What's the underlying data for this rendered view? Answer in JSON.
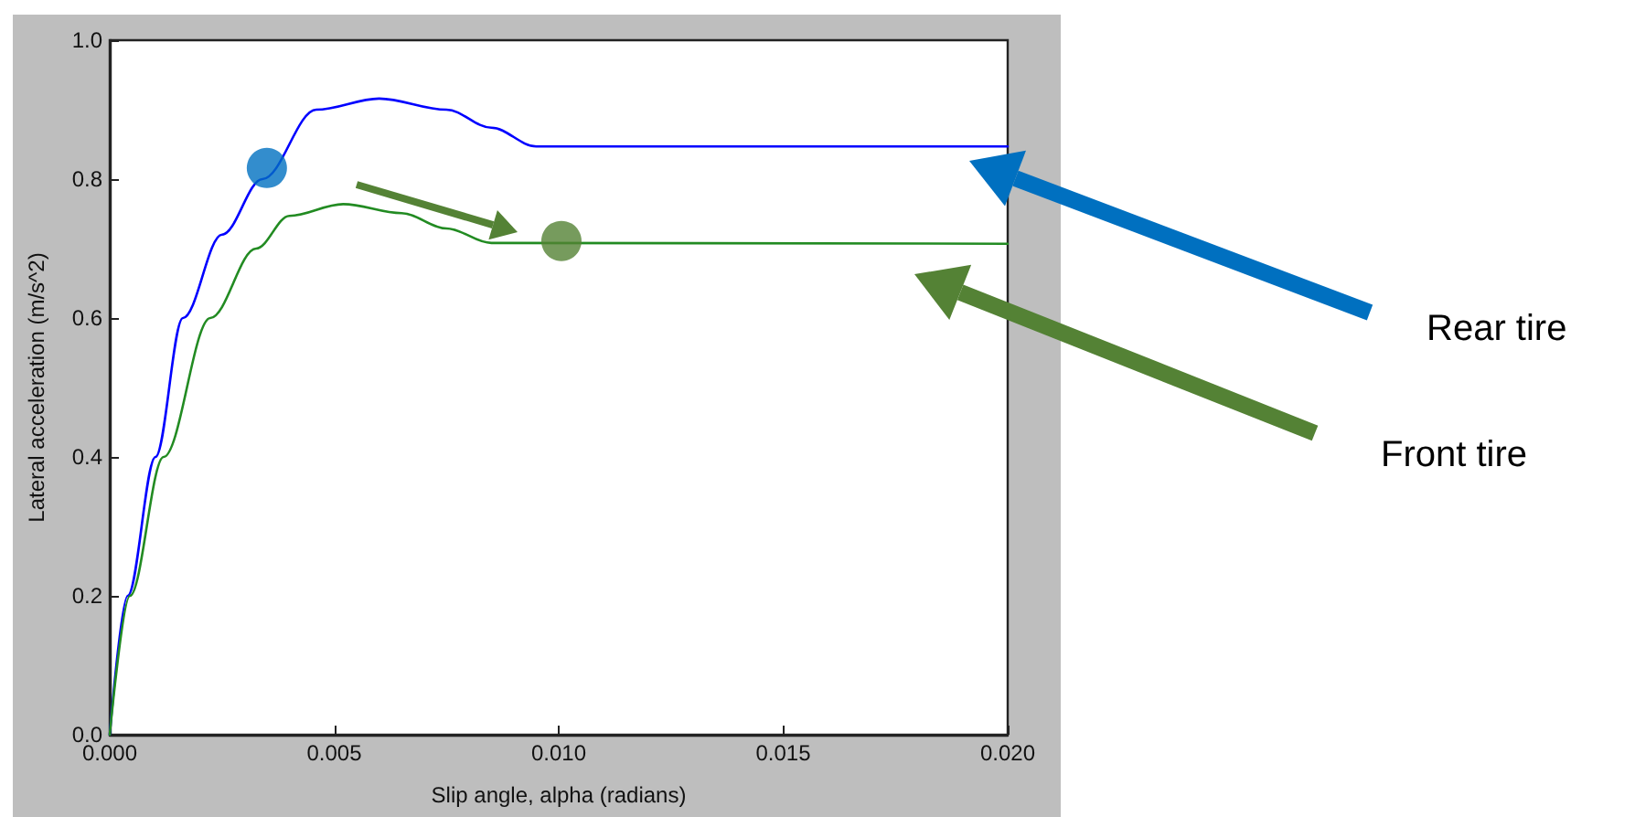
{
  "chart_data": {
    "type": "line",
    "xlabel": "Slip angle, alpha (radians)",
    "ylabel": "Lateral acceleration (m/s^2)",
    "xlim": [
      0,
      0.02
    ],
    "ylim": [
      0,
      1
    ],
    "xticks": [
      {
        "value": 0,
        "label": "0.000"
      },
      {
        "value": 0.005,
        "label": "0.005"
      },
      {
        "value": 0.01,
        "label": "0.010"
      },
      {
        "value": 0.015,
        "label": "0.015"
      },
      {
        "value": 0.02,
        "label": "0.020"
      }
    ],
    "yticks": [
      {
        "value": 0,
        "label": "0.0"
      },
      {
        "value": 0.2,
        "label": "0.2"
      },
      {
        "value": 0.4,
        "label": "0.4"
      },
      {
        "value": 0.6,
        "label": "0.6"
      },
      {
        "value": 0.8,
        "label": "0.8"
      },
      {
        "value": 1,
        "label": "1.0"
      }
    ],
    "grid": false,
    "line_style": "solid",
    "series": [
      {
        "name": "Rear tire",
        "color": "#0000ff",
        "marker": "none",
        "x": [
          0,
          0.0004,
          0.00102,
          0.00163,
          0.0025,
          0.0034,
          0.0046,
          0.006,
          0.0075,
          0.0085,
          0.0095,
          0.02
        ],
        "values": [
          0,
          0.2,
          0.4,
          0.6,
          0.72,
          0.8,
          0.9,
          0.916,
          0.9,
          0.874,
          0.847,
          0.847
        ]
      },
      {
        "name": "Front tire",
        "color": "#228b22",
        "marker": "none",
        "x": [
          0,
          0.00045,
          0.0012,
          0.00224,
          0.00326,
          0.004,
          0.0052,
          0.0065,
          0.0075,
          0.0085,
          0.02
        ],
        "values": [
          0,
          0.2,
          0.4,
          0.6,
          0.7,
          0.747,
          0.764,
          0.751,
          0.729,
          0.708,
          0.707
        ]
      },
      {
        "type": "scatter",
        "color": "#0070c0",
        "marker": "circle",
        "x": [
          0.0035
        ],
        "values": [
          0.816
        ]
      },
      {
        "type": "scatter",
        "color": "#548235",
        "marker": "circle",
        "x": [
          0.01006
        ],
        "values": [
          0.711
        ]
      }
    ]
  }
}
